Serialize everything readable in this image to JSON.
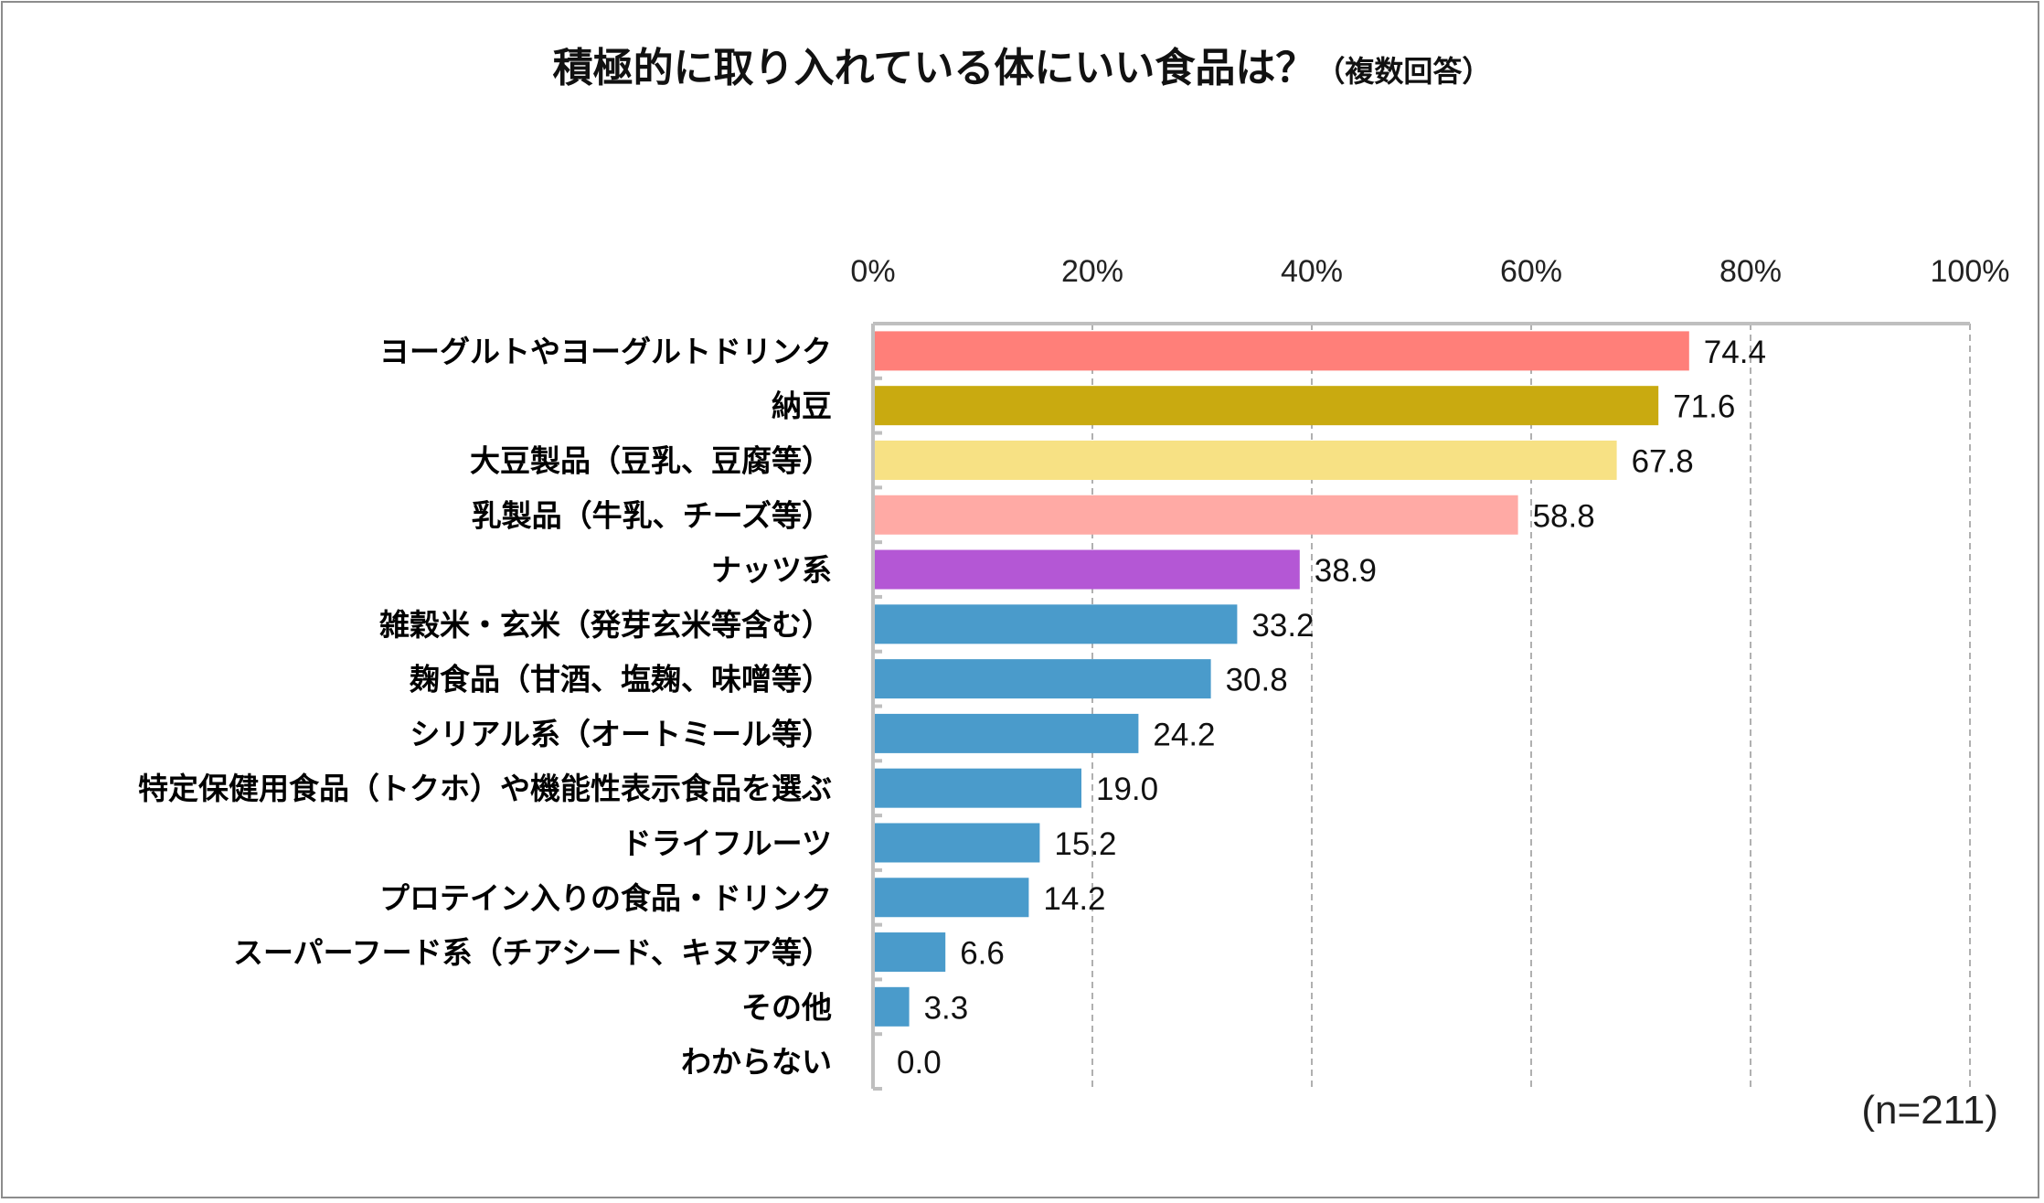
{
  "chart_data": {
    "type": "bar",
    "orientation": "horizontal",
    "title": "積極的に取り入れている体にいい食品は？",
    "subtitle": "（複数回答）",
    "note": "(n=211)",
    "xlim": [
      0,
      100
    ],
    "ticks": [
      "0%",
      "20%",
      "40%",
      "60%",
      "80%",
      "100%"
    ],
    "tick_values": [
      0,
      20,
      40,
      60,
      80,
      100
    ],
    "grid": "vertical dashed",
    "categories": [
      "ヨーグルトやヨーグルトドリンク",
      "納豆",
      "大豆製品（豆乳、豆腐等）",
      "乳製品（牛乳、チーズ等）",
      "ナッツ系",
      "雑穀米・玄米（発芽玄米等含む）",
      "麹食品（甘酒、塩麹、味噌等）",
      "シリアル系（オートミール等）",
      "特定保健用食品（トクホ）や機能性表示食品を選ぶ",
      "ドライフルーツ",
      "プロテイン入りの食品・ドリンク",
      "スーパーフード系（チアシード、キヌア等）",
      "その他",
      "わからない"
    ],
    "values": [
      74.4,
      71.6,
      67.8,
      58.8,
      38.9,
      33.2,
      30.8,
      24.2,
      19.0,
      15.2,
      14.2,
      6.6,
      3.3,
      0.0
    ],
    "labels": [
      "74.4",
      "71.6",
      "67.8",
      "58.8",
      "38.9",
      "33.2",
      "30.8",
      "24.2",
      "19.0",
      "15.2",
      "14.2",
      "6.6",
      "3.3",
      "0.0"
    ],
    "colors": [
      "#ff7f79",
      "#c9aa10",
      "#f7e184",
      "#ffaaa5",
      "#b457d5",
      "#4a9bcb",
      "#4a9bcb",
      "#4a9bcb",
      "#4a9bcb",
      "#4a9bcb",
      "#4a9bcb",
      "#4a9bcb",
      "#4a9bcb",
      "#4a9bcb"
    ]
  }
}
